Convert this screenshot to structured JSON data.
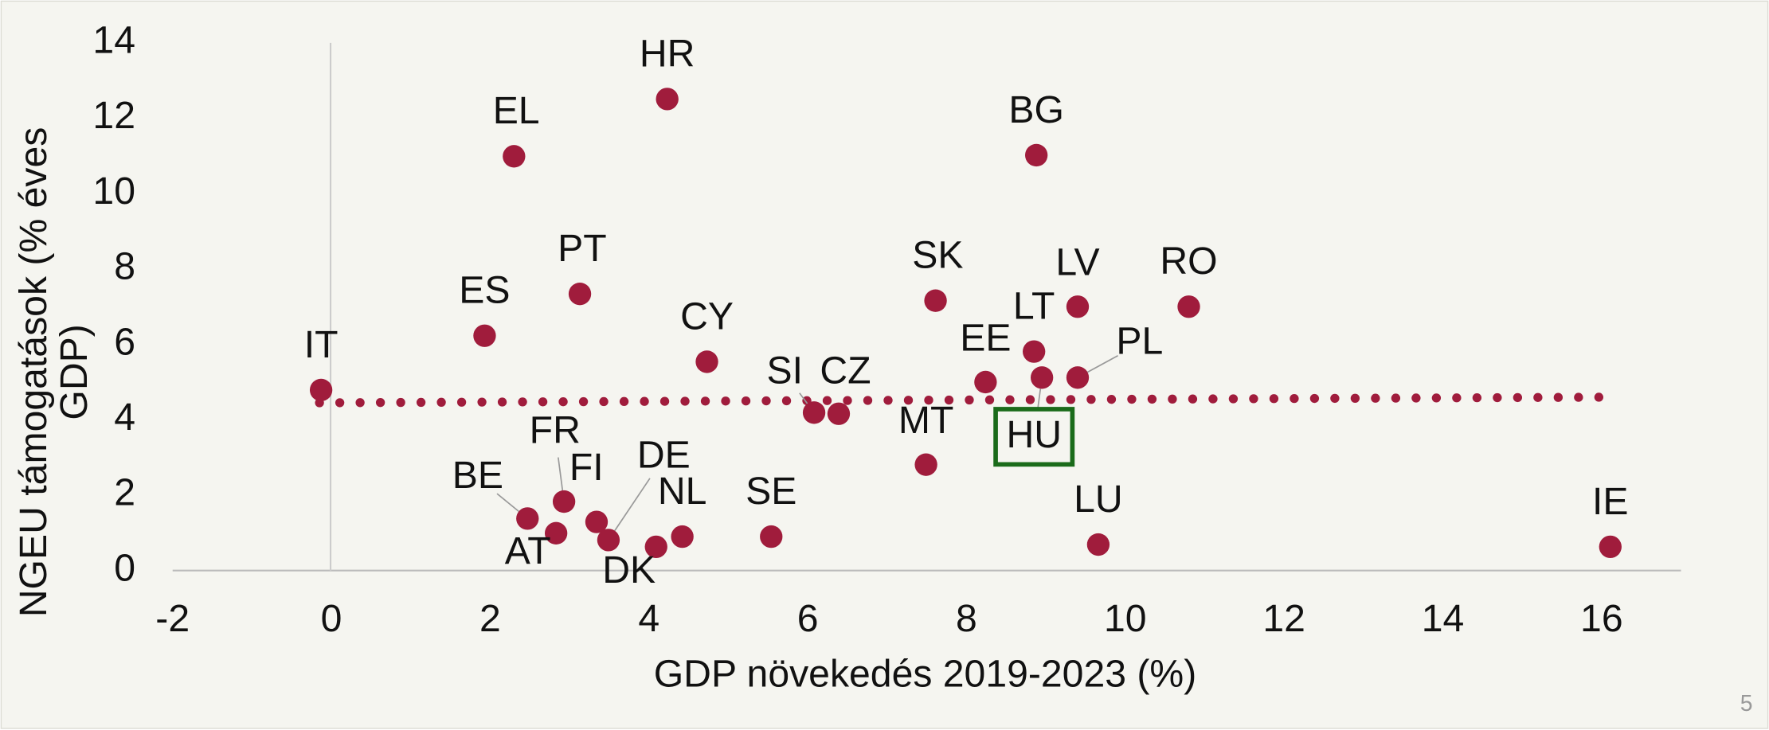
{
  "chart_data": {
    "type": "scatter",
    "x_label": "GDP növekedés 2019-2023 (%)",
    "y_label": "NGEU támogatások (% éves GDP)",
    "xlim": [
      -2,
      17
    ],
    "ylim": [
      0,
      14
    ],
    "xticks": [
      -2,
      0,
      2,
      4,
      6,
      8,
      10,
      12,
      14,
      16
    ],
    "yticks": [
      0,
      2,
      4,
      6,
      8,
      10,
      12,
      14
    ],
    "color": "#a01c3c",
    "highlight": "HU",
    "highlight_color": "#1a6b1a",
    "labels": [
      "IT",
      "ES",
      "EL",
      "HR",
      "PT",
      "CY",
      "SI",
      "CZ",
      "SK",
      "MT",
      "EE",
      "LT",
      "HU",
      "PL",
      "LV",
      "BG",
      "RO",
      "LU",
      "IE",
      "BE",
      "AT",
      "FR",
      "FI",
      "DE",
      "DK",
      "NL",
      "SE"
    ],
    "x": [
      -0.13,
      1.93,
      2.3,
      4.23,
      3.13,
      4.73,
      6.08,
      6.39,
      7.61,
      7.49,
      8.24,
      8.85,
      8.95,
      9.4,
      9.4,
      8.88,
      10.8,
      9.66,
      16.11,
      2.47,
      2.83,
      2.93,
      3.34,
      3.49,
      4.09,
      4.42,
      5.54
    ],
    "y": [
      4.79,
      6.23,
      10.99,
      12.51,
      7.34,
      5.54,
      4.19,
      4.16,
      7.16,
      2.81,
      5.0,
      5.81,
      5.12,
      5.12,
      7.0,
      11.02,
      7.0,
      0.69,
      0.63,
      1.38,
      0.99,
      1.83,
      1.29,
      0.81,
      0.63,
      0.9,
      0.9
    ],
    "trendline": {
      "x": [
        -0.15,
        16.1
      ],
      "y": [
        4.45,
        4.6
      ]
    },
    "page_number": "5"
  }
}
